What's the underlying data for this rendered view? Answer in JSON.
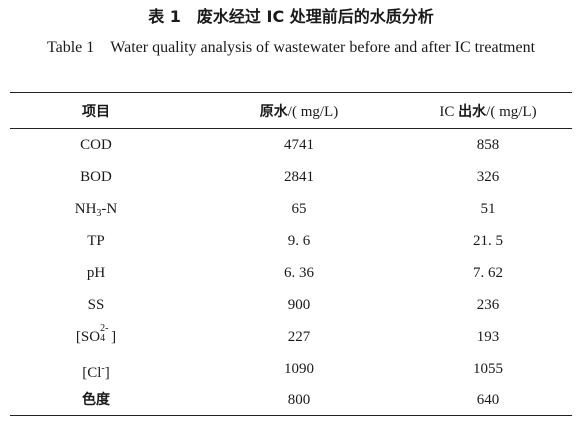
{
  "table": {
    "title_cn": "表 1　废水经过 IC 处理前后的水质分析",
    "title_en": "Table 1　Water quality analysis of wastewater before and after IC treatment",
    "headers": {
      "item": "项目",
      "raw_cn": "原水",
      "raw_unit": "/( mg/L)",
      "ic_prefix": "IC ",
      "ic_cn": "出水",
      "ic_unit": "/( mg/L)"
    },
    "rows": [
      {
        "item": "COD",
        "raw": "4741",
        "ic": "858"
      },
      {
        "item": "BOD",
        "raw": "2841",
        "ic": "326"
      },
      {
        "item_main": "NH",
        "item_sub": "3",
        "item_tail": "-N",
        "raw": "65",
        "ic": "51"
      },
      {
        "item": "TP",
        "raw": "9. 6",
        "ic": "21. 5"
      },
      {
        "item": "pH",
        "raw": "6. 36",
        "ic": "7. 62"
      },
      {
        "item": "SS",
        "raw": "900",
        "ic": "236"
      },
      {
        "item_main": "[SO",
        "item_sub": "4",
        "item_sup": "2-",
        "item_tail": "]",
        "raw": "227",
        "ic": "193"
      },
      {
        "item_main": "[Cl",
        "item_sup": "-",
        "item_tail": "]",
        "raw": "1090",
        "ic": "1055"
      },
      {
        "item": "色度",
        "raw": "800",
        "ic": "640"
      }
    ]
  }
}
